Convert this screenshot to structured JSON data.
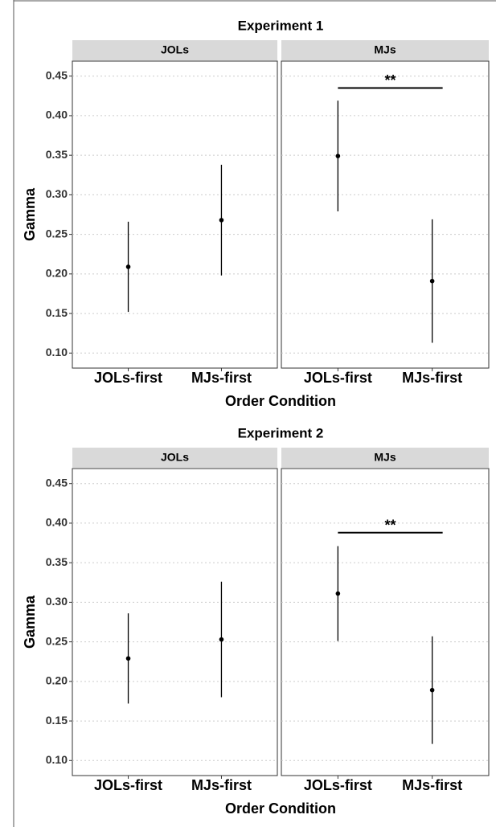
{
  "chart_data": [
    {
      "type": "errorbar",
      "title": "Experiment 1",
      "y_label": "Gamma",
      "x_label": "Order Condition",
      "ylim": [
        0.081,
        0.469
      ],
      "yticks": [
        {
          "value": 0.1,
          "label": "0.10"
        },
        0.15,
        {
          "value": 0.2,
          "label": "0.20"
        },
        0.25,
        {
          "value": 0.3,
          "label": "0.30"
        },
        0.35,
        {
          "value": 0.4,
          "label": "0.40"
        },
        0.45
      ],
      "grid": true,
      "color": "#000000",
      "facets": [
        {
          "name": "JOLs",
          "categories": [
            "JOLs-first",
            "MJs-first"
          ],
          "values": [
            0.209,
            0.268
          ],
          "errors": [
            0.057,
            0.07
          ]
        },
        {
          "name": "MJs",
          "categories": [
            "JOLs-first",
            "MJs-first"
          ],
          "values": [
            0.349,
            0.191
          ],
          "errors": [
            0.07,
            0.078
          ],
          "annotation": {
            "text": "**",
            "y": 0.435
          }
        }
      ]
    },
    {
      "type": "errorbar",
      "title": "Experiment 2",
      "y_label": "Gamma",
      "x_label": "Order Condition",
      "ylim": [
        0.081,
        0.469
      ],
      "yticks": [
        {
          "value": 0.1,
          "label": "0.10"
        },
        0.15,
        {
          "value": 0.2,
          "label": "0.20"
        },
        0.25,
        {
          "value": 0.3,
          "label": "0.30"
        },
        0.35,
        {
          "value": 0.4,
          "label": "0.40"
        },
        0.45
      ],
      "grid": true,
      "color": "#000000",
      "facets": [
        {
          "name": "JOLs",
          "categories": [
            "JOLs-first",
            "MJs-first"
          ],
          "values": [
            0.229,
            0.253
          ],
          "errors": [
            0.057,
            0.073
          ]
        },
        {
          "name": "MJs",
          "categories": [
            "JOLs-first",
            "MJs-first"
          ],
          "values": [
            0.311,
            0.189
          ],
          "errors": [
            0.06,
            0.068
          ],
          "annotation": {
            "text": "**",
            "y": 0.388
          }
        }
      ]
    }
  ]
}
